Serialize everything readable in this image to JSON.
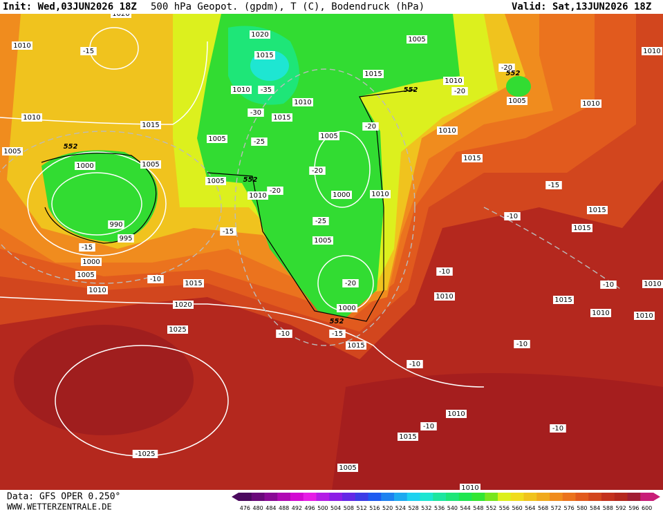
{
  "header": {
    "init": "Init: Wed,03JUN2026 18Z",
    "title": "500 hPa Geopot. (gpdm), T (C), Bodendruck (hPa)",
    "valid": "Valid: Sat,13JUN2026 18Z"
  },
  "map": {
    "labels": [
      "1020",
      "1010",
      "-15",
      "1020",
      "1015",
      "1005",
      "1010",
      "-20",
      "552",
      "1010",
      "-35",
      "1015",
      "1010",
      "552",
      "-20",
      "1005",
      "1010",
      "-30",
      "1015",
      "1010",
      "1010",
      "1015",
      "-20",
      "1010",
      "1005",
      "1005",
      "-25",
      "552",
      "1005",
      "1005",
      "1000",
      "-20",
      "1015",
      "1005",
      "552",
      "-15",
      "1010",
      "-20",
      "1000",
      "1010",
      "1015",
      "-10",
      "-25",
      "-15",
      "1015",
      "990",
      "995",
      "1005",
      "-15",
      "1000",
      "1005",
      "-10",
      "-10",
      "1015",
      "1010",
      "-20",
      "-10",
      "1010",
      "1010",
      "1015",
      "1020",
      "1000",
      "1010",
      "1010",
      "552",
      "1025",
      "-10",
      "-15",
      "1015",
      "-10",
      "-10",
      "1010",
      "-10",
      "1015",
      "-10",
      "-1025",
      "1005",
      "1010"
    ]
  },
  "footer": {
    "source": "Data: GFS OPER 0.250°",
    "site": "WWW.WETTERZENTRALE.DE"
  },
  "colorbar": {
    "labels": [
      476,
      480,
      484,
      488,
      492,
      496,
      500,
      504,
      508,
      512,
      516,
      520,
      524,
      528,
      532,
      536,
      540,
      544,
      548,
      552,
      556,
      560,
      564,
      568,
      572,
      576,
      580,
      584,
      588,
      592,
      596,
      600
    ],
    "colors": [
      "#4b0a5e",
      "#6a0a7a",
      "#8a0a96",
      "#b00ab4",
      "#d20ad2",
      "#e61ee6",
      "#b41ee6",
      "#8c1ee6",
      "#6428e6",
      "#3c3ce6",
      "#1e5af0",
      "#1e82f0",
      "#1eaaf0",
      "#1ed2f0",
      "#1ee6d2",
      "#1ee6a0",
      "#1ee678",
      "#1ee650",
      "#32e632",
      "#78e61e",
      "#dcf01e",
      "#f0dc1e",
      "#f0c31e",
      "#f0aa1e",
      "#f08c1e",
      "#eb731e",
      "#e15a1e",
      "#d2461e",
      "#c3321e",
      "#b4281e",
      "#a01e32",
      "#c81e78"
    ]
  }
}
